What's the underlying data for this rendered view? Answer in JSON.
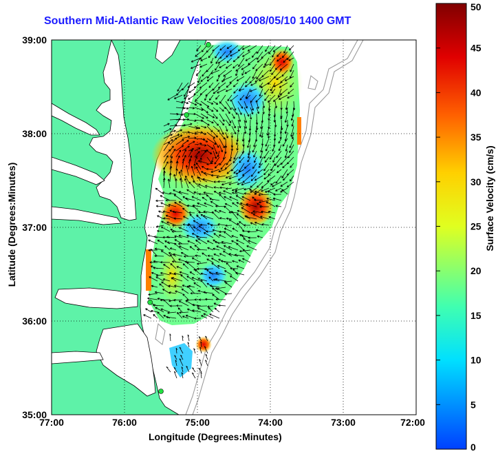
{
  "title": "Southern Mid-Atlantic Raw Velocities 2008/05/10 1400 GMT",
  "map": {
    "x_ticks": [
      "77:00",
      "76:00",
      "75:00",
      "74:00",
      "73:00",
      "72:00"
    ],
    "y_ticks": [
      "39:00",
      "38:00",
      "37:00",
      "36:00",
      "35:00"
    ],
    "x_range": [
      -77,
      -72
    ],
    "y_range": [
      35,
      39
    ],
    "xlabel": "Longitude (Degrees:Minutes)",
    "ylabel": "Latitude (Degrees:Minutes)",
    "land_color": "#5ef2a8",
    "water_color": "#ffffff",
    "grid": "dotted",
    "radar_sites_lonlat": [
      [
        -74.85,
        38.95
      ],
      [
        -75.15,
        38.2
      ],
      [
        -75.65,
        36.2
      ],
      [
        -75.5,
        35.25
      ]
    ]
  },
  "colorbar": {
    "label": "Surface Velocity (cm/s)",
    "ticks": [
      "50",
      "45",
      "40",
      "35",
      "30",
      "25",
      "20",
      "15",
      "10",
      "5",
      "0"
    ],
    "range": [
      0,
      50
    ],
    "colors": [
      "#0000ff",
      "#00ffff",
      "#00ff80",
      "#ffff00",
      "#ff8000",
      "#ff0000",
      "#800000"
    ]
  }
}
